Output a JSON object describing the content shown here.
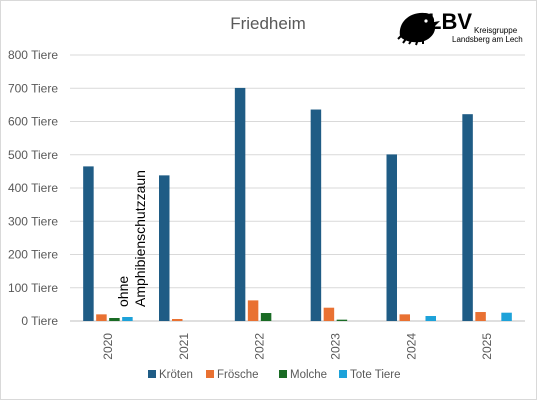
{
  "chart_data": {
    "type": "bar",
    "title": "Friedheim",
    "categories": [
      "2020",
      "2021",
      "2022",
      "2023",
      "2024",
      "2025"
    ],
    "y_ticks": [
      "0 Tiere",
      "100 Tiere",
      "200 Tiere",
      "300 Tiere",
      "400 Tiere",
      "500 Tiere",
      "600 Tiere",
      "700 Tiere",
      "800 Tiere"
    ],
    "ylim": [
      0,
      800
    ],
    "grid": true,
    "legend_position": "bottom",
    "series": [
      {
        "name": "Kröten",
        "color": "#1F5C85",
        "values": [
          465,
          438,
          701,
          636,
          501,
          622
        ]
      },
      {
        "name": "Frösche",
        "color": "#E97132",
        "values": [
          20,
          6,
          62,
          40,
          20,
          27
        ]
      },
      {
        "name": "Molche",
        "color": "#196B24",
        "values": [
          9,
          0,
          24,
          4,
          0,
          0
        ]
      },
      {
        "name": "Tote Tiere",
        "color": "#1DA2D9",
        "values": [
          12,
          0,
          0,
          0,
          15,
          25
        ]
      }
    ],
    "annotation": [
      "ohne",
      "Amphibienschutzzaun"
    ]
  },
  "logo": {
    "text": "LBV",
    "line1": "Kreisgruppe",
    "line2": "Landsberg am Lech"
  }
}
